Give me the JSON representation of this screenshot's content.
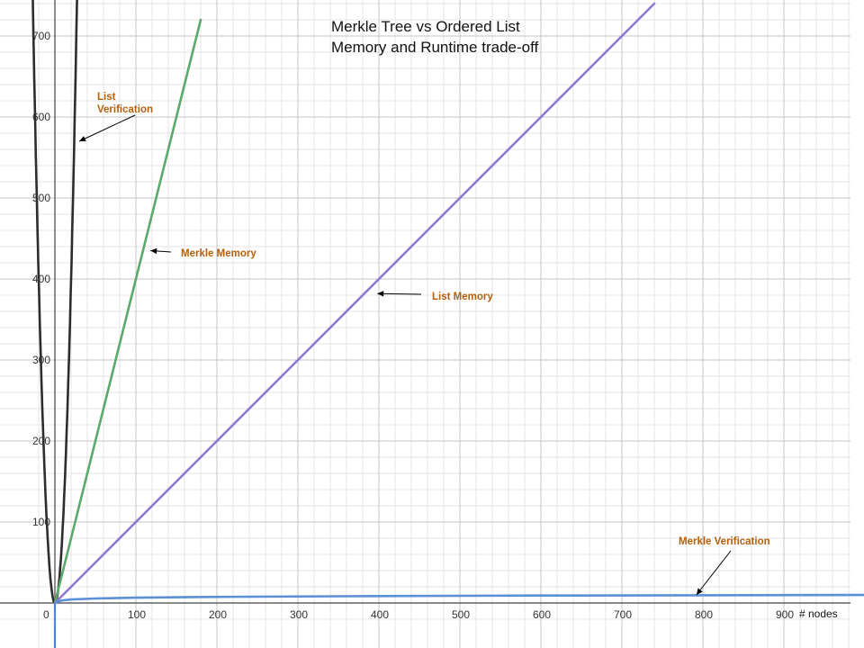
{
  "chart_data": {
    "type": "line",
    "title": [
      "Merkle Tree vs Ordered List",
      "Memory and Runtime trade-off"
    ],
    "xlabel": "# nodes",
    "ylabel": "",
    "xlim": [
      -10,
      985
    ],
    "ylim": [
      -18,
      752
    ],
    "x_ticks": [
      0,
      100,
      200,
      300,
      400,
      500,
      600,
      700,
      800,
      900
    ],
    "y_ticks": [
      100,
      200,
      300,
      400,
      500,
      600,
      700
    ],
    "grid": true,
    "series": [
      {
        "name": "List Verification",
        "color": "#2d2d2d",
        "x": [
          -30,
          -25,
          -20,
          -15,
          -10,
          -5,
          0,
          5,
          10,
          15,
          20,
          25,
          30
        ],
        "y": [
          900,
          625,
          400,
          225,
          100,
          25,
          0,
          25,
          100,
          225,
          400,
          625,
          900
        ]
      },
      {
        "name": "Merkle Memory",
        "color": "#5aaa6a",
        "x": [
          0,
          180
        ],
        "y": [
          0,
          720
        ]
      },
      {
        "name": "List Memory",
        "color": "#8f7ad0",
        "x": [
          0,
          740
        ],
        "y": [
          0,
          740
        ]
      },
      {
        "name": "Merkle Verification",
        "color": "#5b8fd6",
        "x": [
          1,
          2,
          5,
          10,
          20,
          50,
          100,
          200,
          400,
          600,
          800,
          1000
        ],
        "y": [
          0,
          1,
          2.3,
          3.3,
          4.3,
          5.6,
          6.6,
          7.6,
          8.6,
          9.2,
          9.6,
          9.9
        ]
      }
    ],
    "annotations": [
      {
        "text": [
          "List",
          "Verification"
        ],
        "arrow_target": [
          30,
          570
        ]
      },
      {
        "text": [
          "Merkle Memory"
        ],
        "arrow_target": [
          118,
          435
        ]
      },
      {
        "text": [
          "List Memory"
        ],
        "arrow_target": [
          398,
          382
        ]
      },
      {
        "text": [
          "Merkle Verification"
        ],
        "arrow_target": [
          792,
          10
        ]
      }
    ],
    "colors": {
      "axis": "#444444",
      "grid_major": "#c4c4c4",
      "grid_minor": "#e4e4e4",
      "annotation": "#b4600c",
      "y_axis_line": "#4a86d4"
    }
  }
}
